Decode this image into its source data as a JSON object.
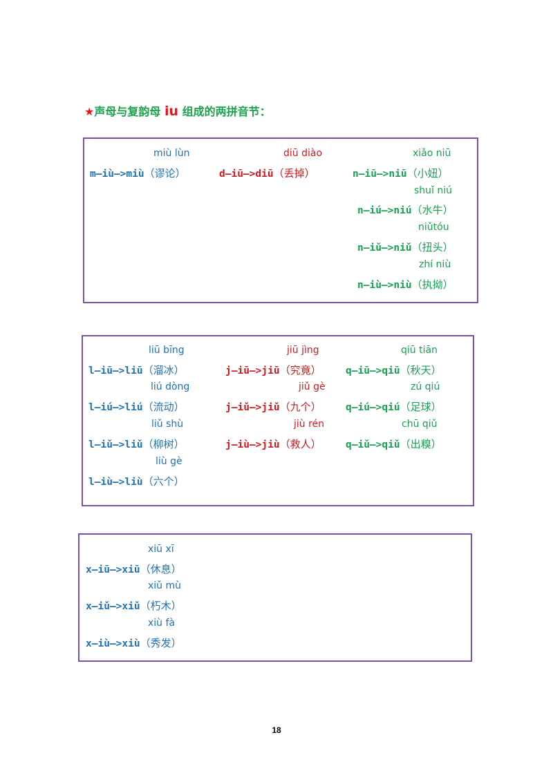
{
  "heading": {
    "star": "★",
    "prefix": "声母与复韵母",
    "iu": "iu",
    "suffix": "组成的两拼音节："
  },
  "boxes": [
    {
      "columns": [
        {
          "entries": [
            {
              "pinyin": "miù lùn",
              "spelling": "m—iù—>miù",
              "word": "（谬论）"
            }
          ]
        },
        {
          "entries": [
            {
              "pinyin": "diū diào",
              "spelling": "d—iū—>diū",
              "word": "（丢掉）"
            }
          ]
        },
        {
          "entries": [
            {
              "pinyin": "xiǎo niū",
              "spelling": "n—iū—>niū",
              "word": "（小妞）"
            },
            {
              "pinyin": "shuǐ niú",
              "spelling": "n—iú—>niú",
              "word": "（水牛）"
            },
            {
              "pinyin": "niǔtóu",
              "spelling": "n—iǔ—>niǔ",
              "word": "（扭头）"
            },
            {
              "pinyin": "zhí niù",
              "spelling": "n—iù—>niù",
              "word": "（执拗）"
            }
          ]
        }
      ]
    },
    {
      "columns": [
        {
          "entries": [
            {
              "pinyin": "liū bīng",
              "spelling": "l—iū—>liū",
              "word": "（溜冰）"
            },
            {
              "pinyin": "liú dòng",
              "spelling": "l—iú—>liú",
              "word": "（流动）"
            },
            {
              "pinyin": "liǔ shù",
              "spelling": "l—iǔ—>liǔ",
              "word": "（柳树）"
            },
            {
              "pinyin": "liù gè",
              "spelling": "l—iù—>liù",
              "word": "（六个）"
            }
          ]
        },
        {
          "entries": [
            {
              "pinyin": "jiū jìng",
              "spelling": "j—iū—>jiū",
              "word": "（究竟）"
            },
            {
              "pinyin": "jiǔ gè",
              "spelling": "j—iǔ—>jiǔ",
              "word": "（九个）"
            },
            {
              "pinyin": "jiù rén",
              "spelling": "j—iù—>jiù",
              "word": "（救人）"
            }
          ]
        },
        {
          "entries": [
            {
              "pinyin": "qiū tiān",
              "spelling": "q—iū—>qiū",
              "word": "（秋天）"
            },
            {
              "pinyin": "zú qiú",
              "spelling": "q—iú—>qiú",
              "word": "（足球）"
            },
            {
              "pinyin": "chū qiǔ",
              "spelling": "q—iǔ—>qiǔ",
              "word": "（出糗）"
            }
          ]
        }
      ]
    },
    {
      "columns": [
        {
          "entries": [
            {
              "pinyin": "xiū xī",
              "spelling": "x—iū—>xiū",
              "word": "（休息）"
            },
            {
              "pinyin": "xiǔ mù",
              "spelling": "x—iǔ—>xiǔ",
              "word": "（朽木）"
            },
            {
              "pinyin": "xiù fà",
              "spelling": "x—iù—>xiù",
              "word": "（秀发）"
            }
          ]
        }
      ]
    }
  ],
  "page_number": "18",
  "colors": {
    "blue": "#1f71b8",
    "red": "#d2191e",
    "green": "#16a151",
    "border": "#7e4fa8"
  }
}
